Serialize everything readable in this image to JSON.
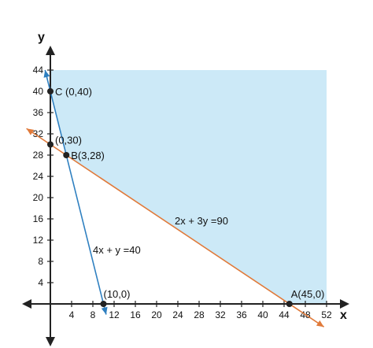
{
  "chart_data": {
    "type": "line",
    "title": "",
    "xlabel": "x",
    "ylabel": "y",
    "xlim": [
      0,
      52
    ],
    "ylim": [
      0,
      44
    ],
    "x_ticks": [
      4,
      8,
      12,
      16,
      20,
      24,
      28,
      32,
      36,
      40,
      44,
      48,
      52
    ],
    "y_ticks": [
      4,
      8,
      12,
      16,
      20,
      24,
      28,
      32,
      36,
      40,
      44
    ],
    "grid": false,
    "colors": {
      "feasible_region": "#cce9f7",
      "line_4x_y": "#2e7fc0",
      "line_2x_3y": "#e07a3a",
      "axis": "#222222",
      "point": "#222222"
    },
    "series": [
      {
        "name": "4x + y =40",
        "x": [
          -1,
          10.5
        ],
        "y": [
          44,
          -2
        ]
      },
      {
        "name": "2x + 3y =90",
        "x": [
          -4.5,
          51.5
        ],
        "y": [
          33,
          -4.33
        ]
      }
    ],
    "feasible_region": [
      [
        0,
        44
      ],
      [
        52,
        44
      ],
      [
        52,
        0
      ],
      [
        45,
        0
      ],
      [
        3,
        28
      ],
      [
        0,
        40
      ]
    ],
    "points": [
      {
        "label": "C (0,40)",
        "x": 0,
        "y": 40
      },
      {
        "label": "(0,30)",
        "x": 0,
        "y": 30
      },
      {
        "label": "B(3,28)",
        "x": 3,
        "y": 28
      },
      {
        "label": "(10,0)",
        "x": 10,
        "y": 0
      },
      {
        "label": "A(45,0)",
        "x": 45,
        "y": 0
      }
    ]
  }
}
